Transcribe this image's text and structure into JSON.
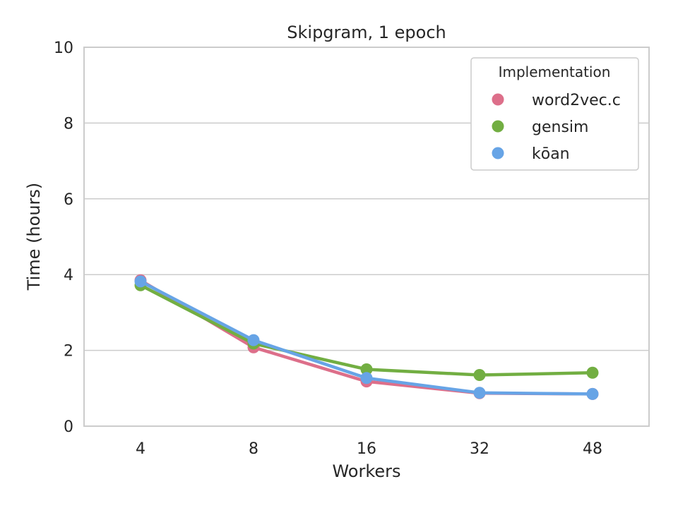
{
  "chart_data": {
    "type": "line",
    "title": "Skipgram, 1 epoch",
    "xlabel": "Workers",
    "ylabel": "Time (hours)",
    "categories": [
      "4",
      "8",
      "16",
      "32",
      "48"
    ],
    "ylim": [
      0,
      10
    ],
    "yticks": [
      "0",
      "2",
      "4",
      "6",
      "8",
      "10"
    ],
    "grid": "horizontal",
    "legend": {
      "title": "Implementation",
      "position": "top-right"
    },
    "series": [
      {
        "name": "word2vec.c",
        "color": "#dd6f8a",
        "values": [
          3.85,
          2.08,
          1.18,
          0.87,
          0.85
        ]
      },
      {
        "name": "gensim",
        "color": "#72ae42",
        "values": [
          3.72,
          2.18,
          1.5,
          1.35,
          1.41
        ]
      },
      {
        "name": "kōan",
        "color": "#67a4e6",
        "values": [
          3.82,
          2.27,
          1.27,
          0.88,
          0.85
        ]
      }
    ]
  }
}
